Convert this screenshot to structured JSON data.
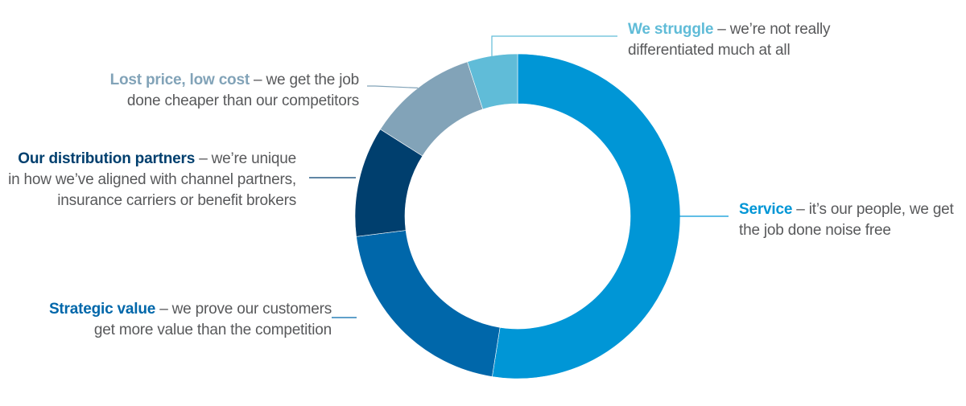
{
  "chart_data": {
    "type": "pie",
    "style": "donut",
    "categories": [
      "Service",
      "Strategic value",
      "Our distribution partners",
      "Lost price, low cost",
      "We struggle"
    ],
    "values": [
      52.5,
      20.5,
      11,
      11,
      5
    ],
    "colors": [
      "#0096d6",
      "#0067aa",
      "#003f6e",
      "#82a3b8",
      "#60bcd8"
    ],
    "title": "",
    "labels": [
      {
        "head": "Service",
        "rest": " – it’s our people, we get",
        "line2": "the job done noise free"
      },
      {
        "head": "Strategic value",
        "rest": " – we prove our customers",
        "line2": "get more value than the competition"
      },
      {
        "head": "Our distribution partners",
        "rest": " – we’re unique",
        "line2": "in how we’ve aligned with channel partners,",
        "line3": "insurance carriers or benefit brokers"
      },
      {
        "head": "Lost price, low cost",
        "rest": " – we get the job",
        "line2": "done cheaper than our competitors"
      },
      {
        "head": "We struggle",
        "rest": " – we’re not really",
        "line2": "differentiated much at all"
      }
    ]
  }
}
